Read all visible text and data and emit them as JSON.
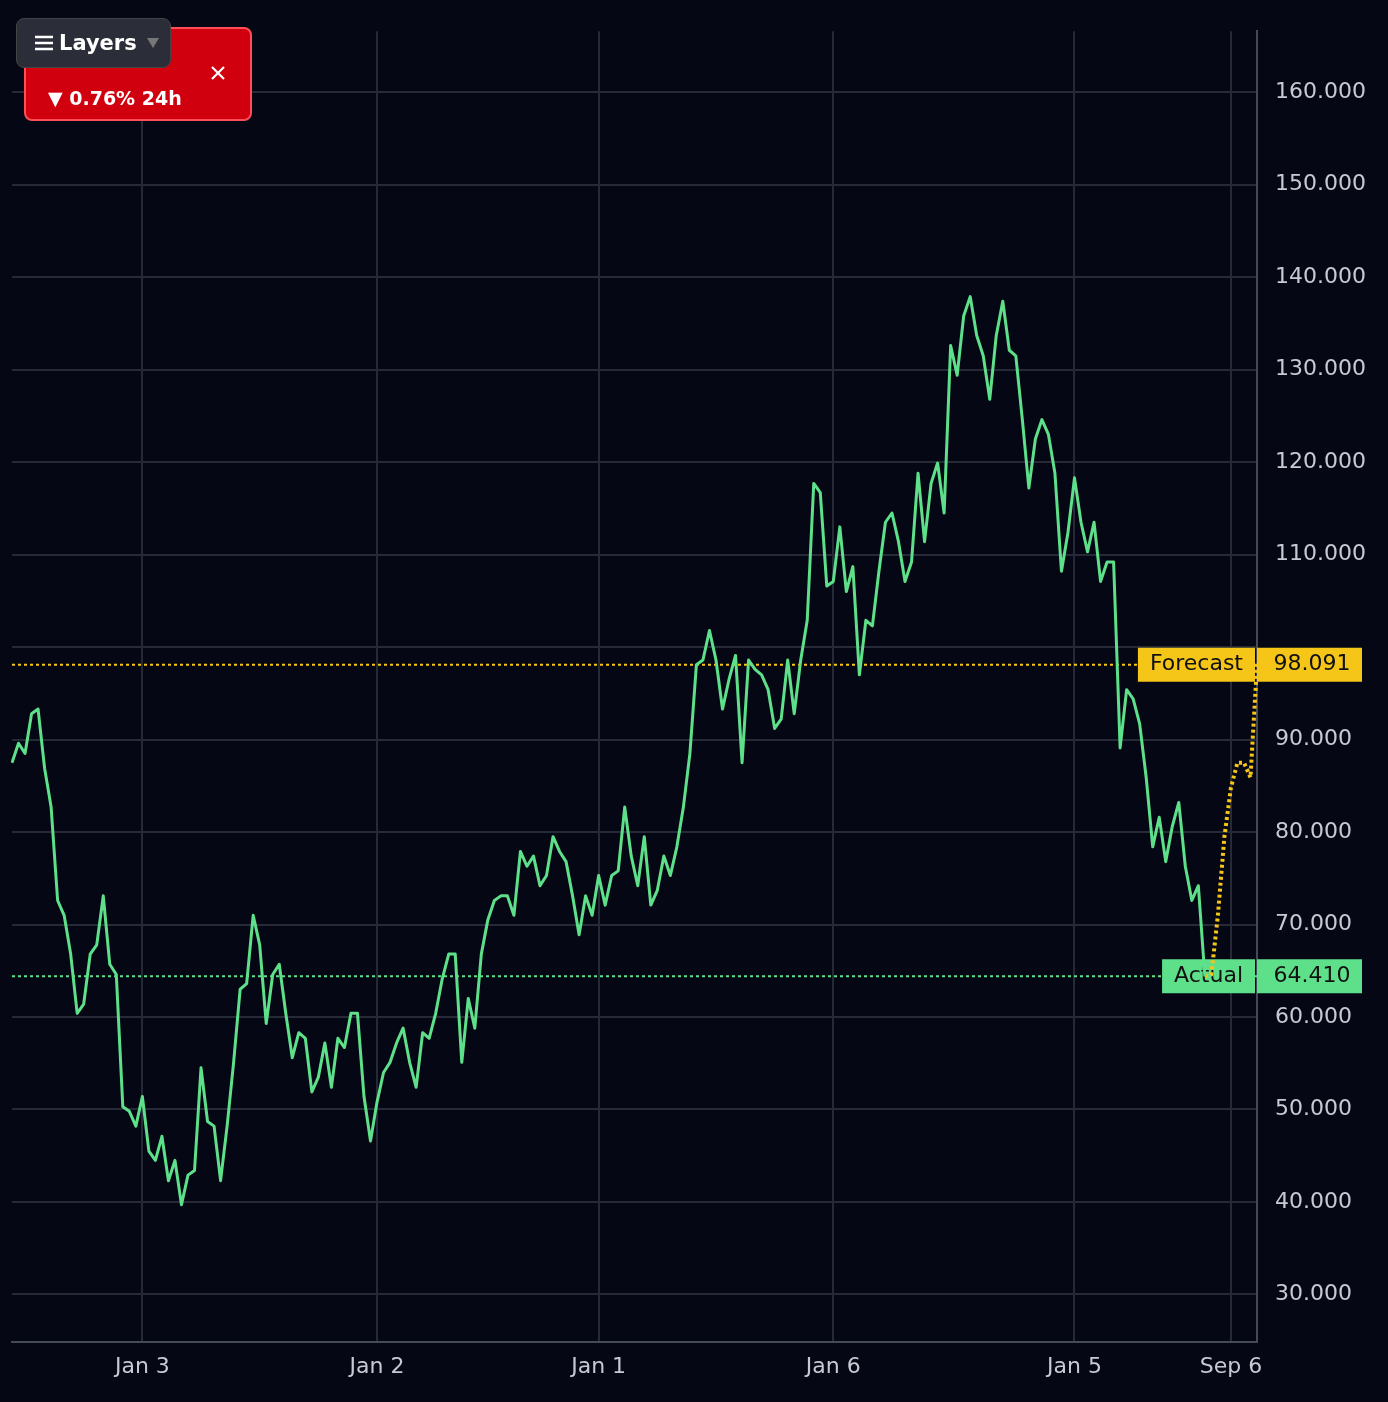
{
  "chart_data": {
    "type": "line",
    "ylim": [
      24.9,
      166.6
    ],
    "categories": [
      null,
      null,
      null,
      null,
      null,
      null,
      null,
      null,
      null,
      null,
      null,
      null,
      null,
      null,
      null,
      null,
      null,
      null,
      null,
      null,
      "Jan 3",
      null,
      null,
      null,
      null,
      null,
      null,
      null,
      null,
      null,
      null,
      null,
      null,
      null,
      null,
      null,
      null,
      null,
      null,
      null,
      null,
      null,
      null,
      null,
      null,
      null,
      null,
      null,
      null,
      null,
      null,
      null,
      null,
      null,
      null,
      null,
      "Jan 2",
      null,
      null,
      null,
      null,
      null,
      null,
      null,
      null,
      null,
      null,
      null,
      null,
      null,
      null,
      null,
      null,
      null,
      null,
      null,
      null,
      null,
      null,
      null,
      null,
      null,
      null,
      null,
      null,
      null,
      null,
      null,
      null,
      null,
      "Jan 1",
      null,
      null,
      null,
      null,
      null,
      null,
      null,
      null,
      null,
      null,
      null,
      null,
      null,
      null,
      null,
      null,
      null,
      null,
      null,
      null,
      null,
      null,
      null,
      null,
      null,
      null,
      null,
      null,
      null,
      null,
      null,
      null,
      null,
      null,
      null,
      "Jan 6",
      null,
      null,
      null,
      null,
      null,
      null,
      null,
      null,
      null,
      null,
      null,
      null,
      null,
      null,
      null,
      null,
      null,
      null,
      null,
      null,
      null,
      null,
      null,
      null,
      null,
      null,
      null,
      null,
      null,
      null,
      null,
      null,
      null,
      null,
      null,
      null,
      "Jan 5",
      null,
      null,
      null,
      null,
      null,
      null,
      null,
      null,
      null,
      null,
      null,
      null,
      null,
      null,
      null,
      null,
      null,
      null,
      null,
      null,
      null,
      null,
      null,
      "Sep 6",
      null,
      null,
      null,
      null
    ],
    "yticks": [
      {
        "value": 30,
        "label": "30.000"
      },
      {
        "value": 40,
        "label": "40.000"
      },
      {
        "value": 50,
        "label": "50.000"
      },
      {
        "value": 60,
        "label": "60.000"
      },
      {
        "value": 70,
        "label": "70.000"
      },
      {
        "value": 80,
        "label": "80.000"
      },
      {
        "value": 90,
        "label": "90.000"
      },
      {
        "value": 100,
        "label": null
      },
      {
        "value": 110,
        "label": "110.000"
      },
      {
        "value": 120,
        "label": "120.000"
      },
      {
        "value": 130,
        "label": "130.000"
      },
      {
        "value": 140,
        "label": "140.000"
      },
      {
        "value": 150,
        "label": "150.000"
      },
      {
        "value": 160,
        "label": "160.000"
      }
    ],
    "grid": true,
    "marker": "none",
    "legend": false,
    "series": [
      {
        "color": "#5ee08a",
        "line_style": "solid",
        "values": [
          87.5,
          89.6,
          88.5,
          92.8,
          93.3,
          86.9,
          82.7,
          72.6,
          71.0,
          66.8,
          60.4,
          61.4,
          66.8,
          67.8,
          73.1,
          65.7,
          64.6,
          50.3,
          49.8,
          48.2,
          51.4,
          45.5,
          44.5,
          47.1,
          42.3,
          44.5,
          39.7,
          42.9,
          43.4,
          54.5,
          48.7,
          48.2,
          42.3,
          48.2,
          55.1,
          63.0,
          63.6,
          71.0,
          67.8,
          59.3,
          64.6,
          65.7,
          60.4,
          55.6,
          58.3,
          57.7,
          51.9,
          53.5,
          57.2,
          52.4,
          57.7,
          56.7,
          60.4,
          60.4,
          51.4,
          46.6,
          50.8,
          54.0,
          55.1,
          57.2,
          58.8,
          55.1,
          52.4,
          58.3,
          57.7,
          60.4,
          64.1,
          66.8,
          66.8,
          55.1,
          62.0,
          58.8,
          66.8,
          70.5,
          72.6,
          73.1,
          73.1,
          71.0,
          77.9,
          76.3,
          77.4,
          74.2,
          75.3,
          79.5,
          77.9,
          76.8,
          73.1,
          68.9,
          73.1,
          71.0,
          75.3,
          72.1,
          75.3,
          75.8,
          82.7,
          77.4,
          74.2,
          79.5,
          72.1,
          73.7,
          77.4,
          75.3,
          78.4,
          82.7,
          88.5,
          98.1,
          98.6,
          101.8,
          98.6,
          93.3,
          96.5,
          99.1,
          87.5,
          98.6,
          97.6,
          97.0,
          95.4,
          91.2,
          92.2,
          98.6,
          92.8,
          98.6,
          102.9,
          117.7,
          116.7,
          106.6,
          107.1,
          113.0,
          106.0,
          108.7,
          97.0,
          102.9,
          102.3,
          108.2,
          113.5,
          114.5,
          111.4,
          107.1,
          109.2,
          118.8,
          111.4,
          117.7,
          119.9,
          114.5,
          132.6,
          129.4,
          135.8,
          137.9,
          133.7,
          131.5,
          126.8,
          133.7,
          137.4,
          132.1,
          131.5,
          124.6,
          117.2,
          122.5,
          124.6,
          123.0,
          118.8,
          108.2,
          112.4,
          118.3,
          113.5,
          110.3,
          113.5,
          107.1,
          109.2,
          109.2,
          89.1,
          95.4,
          94.4,
          91.7,
          85.9,
          78.4,
          81.6,
          76.8,
          80.6,
          83.2,
          76.3,
          72.6,
          74.2,
          64.4,
          null,
          null,
          null,
          null,
          null,
          null,
          null,
          null
        ]
      },
      {
        "color": "#f5c518",
        "line_style": "dotted",
        "values": [
          null,
          null,
          null,
          null,
          null,
          null,
          null,
          null,
          null,
          null,
          null,
          null,
          null,
          null,
          null,
          null,
          null,
          null,
          null,
          null,
          null,
          null,
          null,
          null,
          null,
          null,
          null,
          null,
          null,
          null,
          null,
          null,
          null,
          null,
          null,
          null,
          null,
          null,
          null,
          null,
          null,
          null,
          null,
          null,
          null,
          null,
          null,
          null,
          null,
          null,
          null,
          null,
          null,
          null,
          null,
          null,
          null,
          null,
          null,
          null,
          null,
          null,
          null,
          null,
          null,
          null,
          null,
          null,
          null,
          null,
          null,
          null,
          null,
          null,
          null,
          null,
          null,
          null,
          null,
          null,
          null,
          null,
          null,
          null,
          null,
          null,
          null,
          null,
          null,
          null,
          null,
          null,
          null,
          null,
          null,
          null,
          null,
          null,
          null,
          null,
          null,
          null,
          null,
          null,
          null,
          null,
          null,
          null,
          null,
          null,
          null,
          null,
          null,
          null,
          null,
          null,
          null,
          null,
          null,
          null,
          null,
          null,
          null,
          null,
          null,
          null,
          null,
          null,
          null,
          null,
          null,
          null,
          null,
          null,
          null,
          null,
          null,
          null,
          null,
          null,
          null,
          null,
          null,
          null,
          null,
          null,
          null,
          null,
          null,
          null,
          null,
          null,
          null,
          null,
          null,
          null,
          null,
          null,
          null,
          null,
          null,
          null,
          null,
          null,
          null,
          null,
          null,
          null,
          null,
          null,
          null,
          null,
          null,
          null,
          null,
          null,
          null,
          null,
          null,
          null,
          null,
          null,
          null,
          64.4,
          64.6,
          71.0,
          79.5,
          84.8,
          87.5,
          87.5,
          85.9,
          98.1
        ]
      }
    ],
    "ref_lines": [
      {
        "axis": "y",
        "value": 98.091,
        "label": "Forecast",
        "color": "#f5c518",
        "line_style": "dotted"
      },
      {
        "axis": "y",
        "value": 64.41,
        "label": "Actual",
        "color": "#5ee08a",
        "line_style": "dotted"
      }
    ],
    "annotations": [
      "Layers",
      "▼ 0.76% 24h",
      "98.091",
      "64.410"
    ]
  }
}
